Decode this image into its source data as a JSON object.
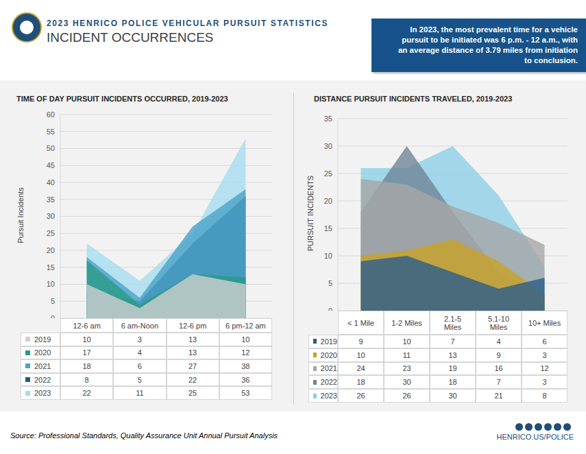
{
  "header": {
    "title": "2023 HENRICO POLICE VEHICULAR PURSUIT STATISTICS",
    "subtitle": "INCIDENT OCCURRENCES"
  },
  "callout": "In 2023, the most prevalent time for a vehicle pursuit to be initiated was 6 p.m. - 12 a.m., with an average distance of 3.79 miles from initiation to conclusion.",
  "chart_data": [
    {
      "type": "area",
      "title": "TIME OF DAY PURSUIT INCIDENTS OCCURRED, 2019-2023",
      "y_label": "Pursuit Incidents",
      "categories": [
        "12-6 am",
        "6 am-Noon",
        "12-6 pm",
        "6 pm-12 am"
      ],
      "series": [
        {
          "name": "2019",
          "color": "#cfcfcf",
          "values": [
            10,
            3,
            13,
            10
          ]
        },
        {
          "name": "2020",
          "color": "#2a9a86",
          "values": [
            17,
            4,
            13,
            12
          ]
        },
        {
          "name": "2021",
          "color": "#4aa3c8",
          "values": [
            18,
            6,
            27,
            38
          ]
        },
        {
          "name": "2022",
          "color": "#1b5e85",
          "values": [
            8,
            5,
            22,
            36
          ]
        },
        {
          "name": "2023",
          "color": "#a6dcef",
          "values": [
            22,
            11,
            25,
            53
          ]
        }
      ],
      "ylim": [
        0,
        60
      ],
      "yticks": [
        0,
        5,
        10,
        15,
        20,
        25,
        30,
        35,
        40,
        45,
        50,
        55,
        60
      ],
      "grid": true
    },
    {
      "type": "area",
      "title": "DISTANCE PURSUIT INCIDENTS TRAVELED, 2019-2023",
      "y_label": "PURSUIT INCIDENTS",
      "categories": [
        "< 1 Mile",
        "1-2 Miles",
        "2.1-5 Miles",
        "5.1-10 Miles",
        "10+ Miles"
      ],
      "series": [
        {
          "name": "2019",
          "color": "#2b5c8a",
          "values": [
            9,
            10,
            7,
            4,
            6
          ]
        },
        {
          "name": "2020",
          "color": "#c9a227",
          "values": [
            10,
            11,
            13,
            9,
            3
          ]
        },
        {
          "name": "2021",
          "color": "#a6a6a6",
          "values": [
            24,
            23,
            19,
            16,
            12
          ]
        },
        {
          "name": "2022",
          "color": "#6f8596",
          "values": [
            18,
            30,
            18,
            7,
            3
          ]
        },
        {
          "name": "2023",
          "color": "#8ccfe6",
          "values": [
            26,
            26,
            30,
            21,
            8
          ]
        }
      ],
      "ylim": [
        0,
        35
      ],
      "yticks": [
        0,
        5,
        10,
        15,
        20,
        25,
        30,
        35
      ],
      "grid": true
    }
  ],
  "footer": {
    "source": "Source: Professional Standards, Quality Assurance Unit Annual Pursuit Analysis",
    "url": "HENRICO.US/POLICE"
  }
}
